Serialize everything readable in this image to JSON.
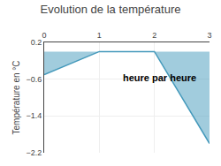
{
  "chart_data": {
    "type": "area",
    "title": "Evolution de la température",
    "xlabel": "heure par heure",
    "ylabel": "Température en °C",
    "x": [
      0,
      1,
      2,
      3
    ],
    "values": [
      -0.5,
      0.0,
      0.0,
      -2.0
    ],
    "color": "#4499bb",
    "xlim": [
      0,
      3
    ],
    "ylim": [
      -2.2,
      0.2
    ],
    "xticks": [
      0,
      1,
      2,
      3
    ],
    "yticks": [
      0.2,
      -0.6,
      -1.4,
      -2.2
    ],
    "grid": true
  }
}
